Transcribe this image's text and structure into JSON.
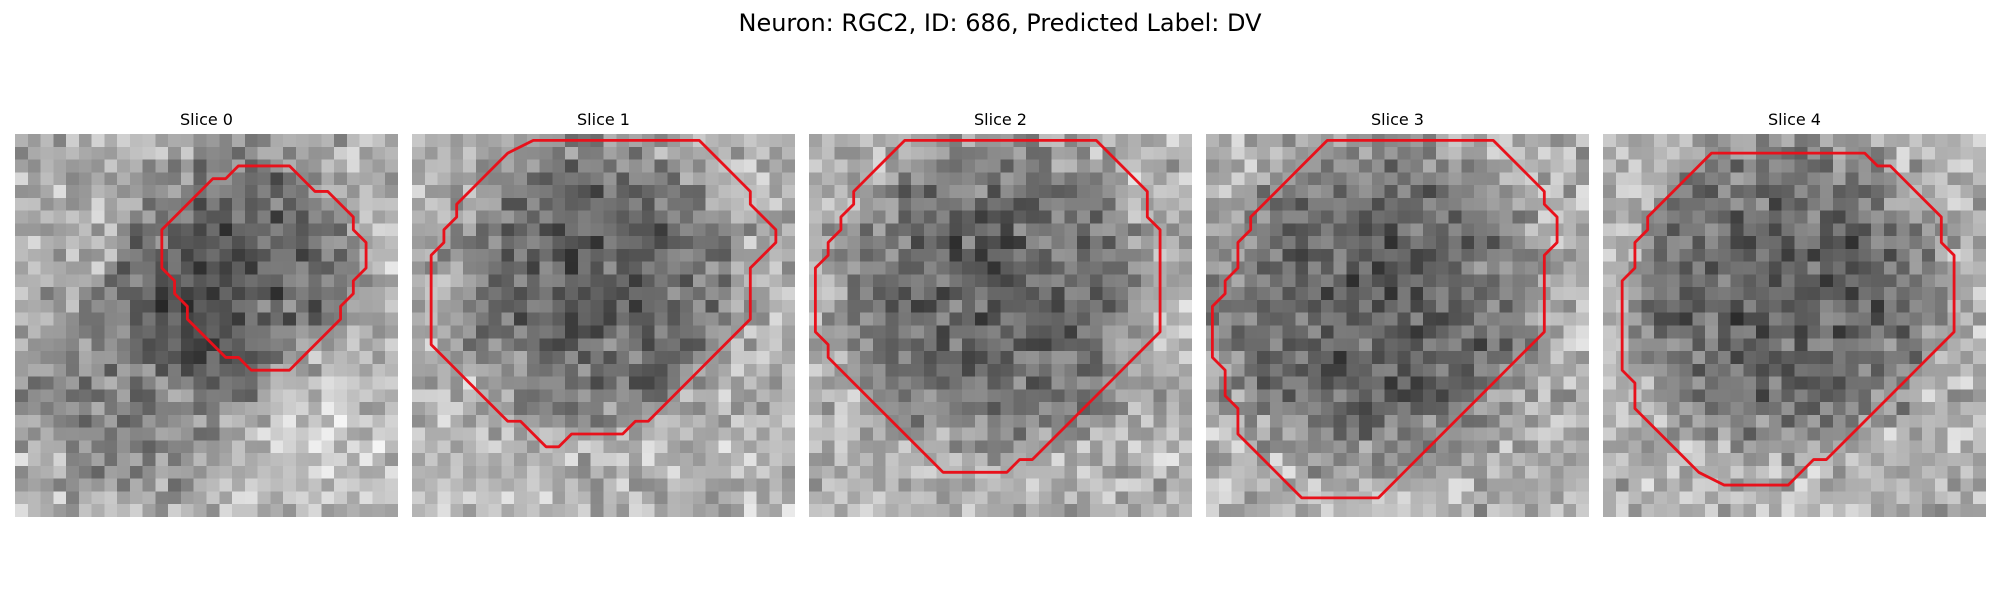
{
  "figure": {
    "title": "Neuron: RGC2, ID: 686, Predicted Label: DV"
  },
  "contour_color": "#e8111b",
  "slices": [
    {
      "title": "Slice 0",
      "contour": [
        [
          18,
          2
        ],
        [
          21,
          2
        ],
        [
          22,
          3
        ],
        [
          23,
          4
        ],
        [
          24,
          4
        ],
        [
          25,
          5
        ],
        [
          26,
          6
        ],
        [
          26,
          7
        ],
        [
          27,
          8
        ],
        [
          27,
          10
        ],
        [
          26,
          11
        ],
        [
          26,
          12
        ],
        [
          25,
          13
        ],
        [
          25,
          14
        ],
        [
          24,
          15
        ],
        [
          23,
          16
        ],
        [
          22,
          17
        ],
        [
          21,
          18
        ],
        [
          18,
          18
        ],
        [
          17,
          17
        ],
        [
          16,
          17
        ],
        [
          15,
          16
        ],
        [
          14,
          15
        ],
        [
          13,
          14
        ],
        [
          13,
          13
        ],
        [
          12,
          12
        ],
        [
          12,
          11
        ],
        [
          11,
          10
        ],
        [
          11,
          7
        ],
        [
          12,
          6
        ],
        [
          13,
          5
        ],
        [
          14,
          4
        ],
        [
          15,
          3
        ],
        [
          16,
          3
        ],
        [
          17,
          2
        ]
      ]
    },
    {
      "title": "Slice 1",
      "contour": [
        [
          9,
          0
        ],
        [
          7,
          1
        ],
        [
          6,
          2
        ],
        [
          5,
          3
        ],
        [
          4,
          4
        ],
        [
          3,
          5
        ],
        [
          3,
          6
        ],
        [
          2,
          7
        ],
        [
          2,
          8
        ],
        [
          1,
          9
        ],
        [
          1,
          11
        ],
        [
          1,
          12
        ],
        [
          1,
          14
        ],
        [
          1,
          16
        ],
        [
          2,
          17
        ],
        [
          3,
          18
        ],
        [
          4,
          19
        ],
        [
          5,
          20
        ],
        [
          6,
          21
        ],
        [
          7,
          22
        ],
        [
          8,
          22
        ],
        [
          9,
          23
        ],
        [
          10,
          24
        ],
        [
          11,
          24
        ],
        [
          12,
          23
        ],
        [
          14,
          23
        ],
        [
          15,
          23
        ],
        [
          16,
          23
        ],
        [
          17,
          22
        ],
        [
          18,
          22
        ],
        [
          19,
          21
        ],
        [
          20,
          20
        ],
        [
          21,
          19
        ],
        [
          22,
          18
        ],
        [
          23,
          17
        ],
        [
          24,
          16
        ],
        [
          25,
          15
        ],
        [
          26,
          14
        ],
        [
          26,
          12
        ],
        [
          26,
          11
        ],
        [
          26,
          10
        ],
        [
          27,
          9
        ],
        [
          28,
          8
        ],
        [
          28,
          7
        ],
        [
          27,
          6
        ],
        [
          26,
          5
        ],
        [
          26,
          4
        ],
        [
          25,
          3
        ],
        [
          24,
          2
        ],
        [
          23,
          1
        ],
        [
          22,
          0
        ]
      ]
    },
    {
      "title": "Slice 2",
      "contour": [
        [
          7,
          0
        ],
        [
          6,
          1
        ],
        [
          5,
          2
        ],
        [
          4,
          3
        ],
        [
          3,
          4
        ],
        [
          3,
          5
        ],
        [
          2,
          6
        ],
        [
          2,
          7
        ],
        [
          1,
          8
        ],
        [
          1,
          9
        ],
        [
          0,
          10
        ],
        [
          0,
          13
        ],
        [
          0,
          15
        ],
        [
          1,
          16
        ],
        [
          1,
          17
        ],
        [
          2,
          18
        ],
        [
          3,
          19
        ],
        [
          4,
          20
        ],
        [
          5,
          21
        ],
        [
          6,
          22
        ],
        [
          7,
          23
        ],
        [
          8,
          24
        ],
        [
          9,
          25
        ],
        [
          10,
          26
        ],
        [
          12,
          26
        ],
        [
          14,
          26
        ],
        [
          15,
          26
        ],
        [
          16,
          25
        ],
        [
          17,
          25
        ],
        [
          18,
          24
        ],
        [
          19,
          23
        ],
        [
          20,
          22
        ],
        [
          21,
          21
        ],
        [
          22,
          20
        ],
        [
          23,
          19
        ],
        [
          24,
          18
        ],
        [
          25,
          17
        ],
        [
          26,
          16
        ],
        [
          27,
          15
        ],
        [
          27,
          13
        ],
        [
          27,
          10
        ],
        [
          27,
          7
        ],
        [
          26,
          6
        ],
        [
          26,
          4
        ],
        [
          25,
          3
        ],
        [
          24,
          2
        ],
        [
          23,
          1
        ],
        [
          22,
          0
        ]
      ]
    },
    {
      "title": "Slice 3",
      "contour": [
        [
          9,
          0
        ],
        [
          8,
          1
        ],
        [
          7,
          2
        ],
        [
          6,
          3
        ],
        [
          5,
          4
        ],
        [
          4,
          5
        ],
        [
          3,
          6
        ],
        [
          3,
          7
        ],
        [
          2,
          8
        ],
        [
          2,
          10
        ],
        [
          1,
          11
        ],
        [
          1,
          12
        ],
        [
          0,
          13
        ],
        [
          0,
          15
        ],
        [
          0,
          17
        ],
        [
          1,
          18
        ],
        [
          1,
          20
        ],
        [
          2,
          21
        ],
        [
          2,
          23
        ],
        [
          3,
          24
        ],
        [
          4,
          25
        ],
        [
          5,
          26
        ],
        [
          6,
          27
        ],
        [
          7,
          28
        ],
        [
          13,
          28
        ],
        [
          14,
          27
        ],
        [
          15,
          26
        ],
        [
          16,
          25
        ],
        [
          17,
          24
        ],
        [
          18,
          23
        ],
        [
          19,
          22
        ],
        [
          20,
          21
        ],
        [
          21,
          20
        ],
        [
          22,
          19
        ],
        [
          23,
          18
        ],
        [
          24,
          17
        ],
        [
          25,
          16
        ],
        [
          26,
          15
        ],
        [
          26,
          13
        ],
        [
          26,
          11
        ],
        [
          26,
          9
        ],
        [
          27,
          8
        ],
        [
          27,
          6
        ],
        [
          26,
          5
        ],
        [
          26,
          4
        ],
        [
          25,
          3
        ],
        [
          24,
          2
        ],
        [
          23,
          1
        ],
        [
          22,
          0
        ]
      ]
    },
    {
      "title": "Slice 4",
      "contour": [
        [
          9,
          1
        ],
        [
          8,
          1
        ],
        [
          7,
          2
        ],
        [
          6,
          3
        ],
        [
          5,
          4
        ],
        [
          4,
          5
        ],
        [
          3,
          6
        ],
        [
          3,
          7
        ],
        [
          2,
          8
        ],
        [
          2,
          10
        ],
        [
          1,
          11
        ],
        [
          1,
          14
        ],
        [
          1,
          16
        ],
        [
          1,
          18
        ],
        [
          2,
          19
        ],
        [
          2,
          21
        ],
        [
          3,
          22
        ],
        [
          4,
          23
        ],
        [
          5,
          24
        ],
        [
          6,
          25
        ],
        [
          7,
          26
        ],
        [
          9,
          27
        ],
        [
          12,
          27
        ],
        [
          14,
          27
        ],
        [
          15,
          26
        ],
        [
          16,
          25
        ],
        [
          17,
          25
        ],
        [
          18,
          24
        ],
        [
          19,
          23
        ],
        [
          20,
          22
        ],
        [
          21,
          21
        ],
        [
          22,
          20
        ],
        [
          23,
          19
        ],
        [
          24,
          18
        ],
        [
          25,
          17
        ],
        [
          26,
          16
        ],
        [
          27,
          15
        ],
        [
          27,
          13
        ],
        [
          27,
          11
        ],
        [
          27,
          9
        ],
        [
          26,
          8
        ],
        [
          26,
          6
        ],
        [
          25,
          5
        ],
        [
          24,
          4
        ],
        [
          23,
          3
        ],
        [
          22,
          2
        ],
        [
          21,
          2
        ],
        [
          20,
          1
        ],
        [
          19,
          1
        ],
        [
          17,
          1
        ],
        [
          15,
          1
        ],
        [
          13,
          1
        ],
        [
          11,
          1
        ]
      ]
    }
  ]
}
